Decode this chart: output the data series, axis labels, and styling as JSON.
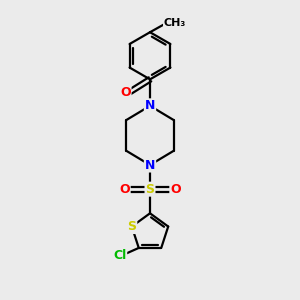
{
  "bg_color": "#ebebeb",
  "bond_color": "#000000",
  "bond_width": 1.6,
  "atom_colors": {
    "O": "#ff0000",
    "N": "#0000ff",
    "S": "#cccc00",
    "Cl": "#00bb00",
    "C": "#000000"
  },
  "font_size": 9,
  "title": ""
}
